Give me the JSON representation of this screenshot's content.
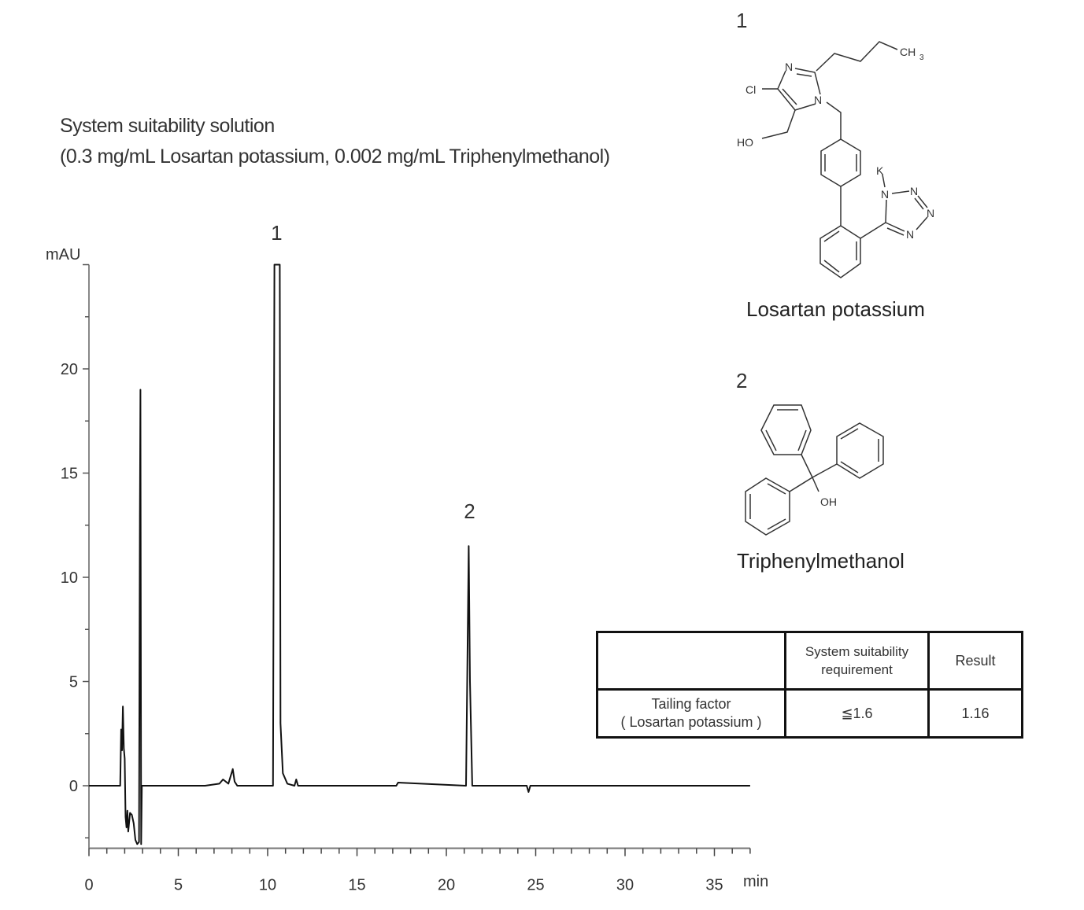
{
  "header": {
    "title": "System suitability solution",
    "subtitle": "(0.3 mg/mL Losartan potassium, 0.002 mg/mL Triphenylmethanol)"
  },
  "chart_data": {
    "type": "line",
    "title": "System suitability solution",
    "subtitle": "(0.3 mg/mL Losartan potassium, 0.002 mg/mL Triphenylmethanol)",
    "xlabel": "min",
    "ylabel": "mAU",
    "xlim": [
      0,
      37
    ],
    "ylim": [
      -3,
      25
    ],
    "x_ticks": [
      0,
      5,
      10,
      15,
      20,
      25,
      30,
      35
    ],
    "y_ticks": [
      0,
      5,
      10,
      15,
      20
    ],
    "grid": false,
    "line_color": "#111111",
    "peak_labels": [
      {
        "label": "1",
        "x": 10.5
      },
      {
        "label": "2",
        "x": 21.3
      }
    ],
    "series": [
      {
        "x": [
          0,
          1.75,
          1.8,
          1.85,
          1.9,
          1.95,
          2.0,
          2.05,
          2.1,
          2.15,
          2.2,
          2.3,
          2.4,
          2.5,
          2.6,
          2.7,
          2.8,
          2.85,
          2.88,
          2.92,
          2.96,
          3.0,
          3.1,
          6.5,
          7.3,
          7.5,
          7.8,
          8.05,
          8.15,
          8.3,
          8.6,
          10.3,
          10.38,
          10.42,
          10.68,
          10.72,
          10.85,
          11.1,
          11.5,
          11.6,
          11.7,
          14,
          17.2,
          17.3,
          21.1,
          21.25,
          21.32,
          21.45,
          21.6,
          24.5,
          24.6,
          24.7,
          37
        ],
        "y": [
          0,
          0,
          2.7,
          1.7,
          3.8,
          1.8,
          1.3,
          -1.5,
          -2.0,
          -1.2,
          -2.2,
          -1.3,
          -1.4,
          -1.8,
          -2.6,
          -2.8,
          -2.7,
          13,
          19,
          -2.8,
          0,
          0,
          0,
          0,
          0.1,
          0.3,
          0.1,
          0.8,
          0.2,
          0,
          0,
          0,
          25,
          25,
          25,
          3,
          0.6,
          0.1,
          0,
          0.3,
          0,
          0,
          0,
          0.15,
          0,
          11.5,
          5,
          0,
          0,
          0,
          -0.3,
          0,
          0
        ]
      }
    ]
  },
  "structures": [
    {
      "number": "1",
      "name": "Losartan potassium",
      "atoms": {
        "n3": "N",
        "cl": "Cl",
        "n1": "N",
        "ho": "HO",
        "ch3": "CH",
        "ch3_sub": "3",
        "k": "K",
        "tn1": "N",
        "tn2": "N",
        "tn3": "N",
        "tn4": "N"
      }
    },
    {
      "number": "2",
      "name": "Triphenylmethanol",
      "atoms": {
        "oh": "OH"
      }
    }
  ],
  "table": {
    "headers": [
      "",
      "System  suitability requirement",
      "Result"
    ],
    "header_lines": [
      "System  suitability",
      "requirement"
    ],
    "rows": [
      {
        "label_line1": "Tailing factor",
        "label_line2": "( Losartan potassium )",
        "requirement": "≦1.6",
        "result": "1.16"
      }
    ]
  }
}
